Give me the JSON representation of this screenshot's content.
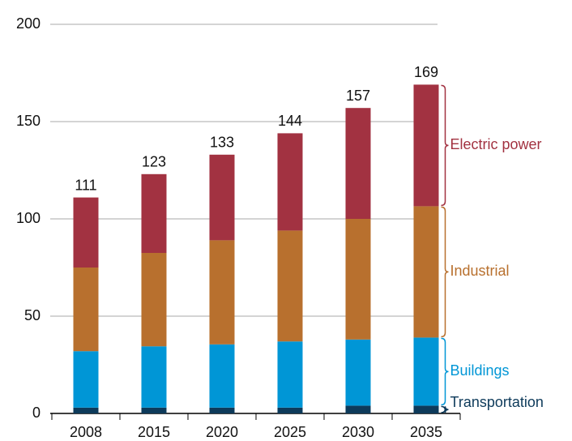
{
  "chart_data": {
    "type": "stacked_bar",
    "categories": [
      "2008",
      "2015",
      "2020",
      "2025",
      "2030",
      "2035"
    ],
    "series": [
      {
        "name": "Transportation",
        "color": "#0d3a5a",
        "values": [
          3,
          3,
          3,
          3,
          4,
          4
        ]
      },
      {
        "name": "Buildings",
        "color": "#0096d6",
        "values": [
          29,
          31.5,
          32.5,
          34,
          34,
          35
        ]
      },
      {
        "name": "Industrial",
        "color": "#b8702e",
        "values": [
          43,
          48,
          53.5,
          57,
          62,
          67.5
        ]
      },
      {
        "name": "Electric power",
        "color": "#a23241",
        "values": [
          36,
          40.5,
          44,
          50,
          57,
          62.5
        ]
      }
    ],
    "totals": [
      111,
      123,
      133,
      144,
      157,
      169
    ],
    "ylim": [
      0,
      200
    ],
    "yticks": [
      0,
      50,
      100,
      150,
      200
    ],
    "grid": true
  }
}
